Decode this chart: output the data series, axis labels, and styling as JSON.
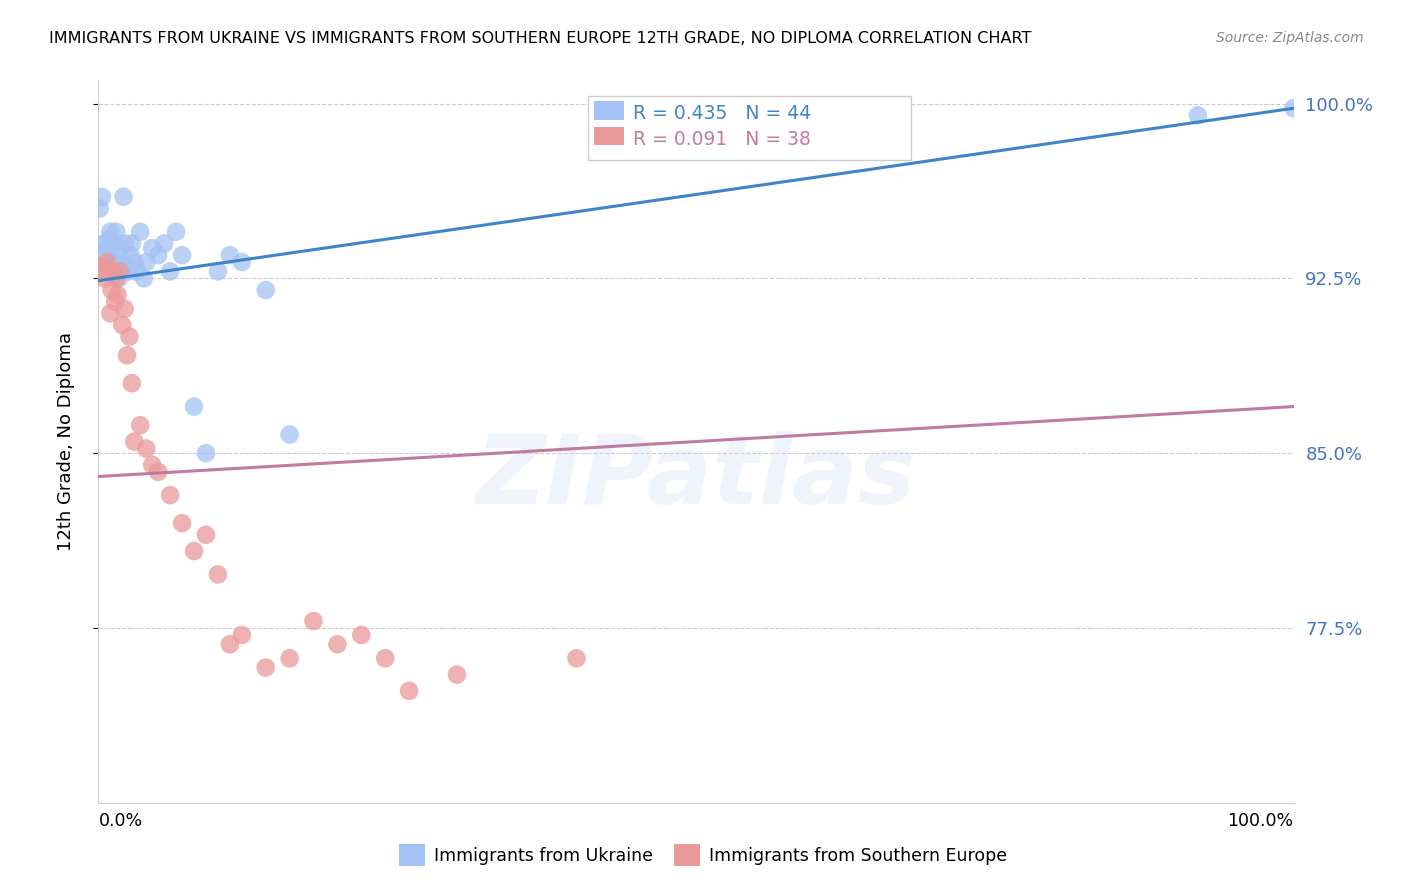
{
  "title": "IMMIGRANTS FROM UKRAINE VS IMMIGRANTS FROM SOUTHERN EUROPE 12TH GRADE, NO DIPLOMA CORRELATION CHART",
  "source": "Source: ZipAtlas.com",
  "ylabel": "12th Grade, No Diploma",
  "blue_color": "#a4c2f4",
  "pink_color": "#ea9999",
  "blue_line_color": "#3d85c8",
  "pink_line_color": "#c27ba0",
  "ytick_color": "#4472c4",
  "legend_label_blue": "Immigrants from Ukraine",
  "legend_label_pink": "Immigrants from Southern Europe",
  "blue_R": "0.435",
  "blue_N": "44",
  "pink_R": "0.091",
  "pink_N": "38",
  "blue_scatter_x": [
    0.001,
    0.003,
    0.005,
    0.006,
    0.007,
    0.008,
    0.009,
    0.01,
    0.01,
    0.011,
    0.012,
    0.013,
    0.014,
    0.015,
    0.016,
    0.017,
    0.018,
    0.02,
    0.021,
    0.022,
    0.024,
    0.025,
    0.027,
    0.028,
    0.03,
    0.032,
    0.035,
    0.038,
    0.04,
    0.045,
    0.05,
    0.055,
    0.06,
    0.065,
    0.07,
    0.08,
    0.09,
    0.1,
    0.11,
    0.12,
    0.14,
    0.16,
    0.92,
    1.0
  ],
  "blue_scatter_y": [
    0.955,
    0.96,
    0.94,
    0.935,
    0.938,
    0.93,
    0.942,
    0.945,
    0.938,
    0.932,
    0.928,
    0.93,
    0.94,
    0.945,
    0.932,
    0.925,
    0.935,
    0.93,
    0.96,
    0.94,
    0.93,
    0.928,
    0.935,
    0.94,
    0.932,
    0.928,
    0.945,
    0.925,
    0.932,
    0.938,
    0.935,
    0.94,
    0.928,
    0.945,
    0.935,
    0.87,
    0.85,
    0.928,
    0.935,
    0.932,
    0.92,
    0.858,
    0.995,
    0.998
  ],
  "pink_scatter_x": [
    0.001,
    0.003,
    0.005,
    0.007,
    0.009,
    0.01,
    0.011,
    0.012,
    0.014,
    0.015,
    0.016,
    0.018,
    0.02,
    0.022,
    0.024,
    0.026,
    0.028,
    0.03,
    0.035,
    0.04,
    0.045,
    0.05,
    0.06,
    0.07,
    0.08,
    0.09,
    0.1,
    0.11,
    0.12,
    0.14,
    0.16,
    0.18,
    0.2,
    0.22,
    0.24,
    0.26,
    0.3,
    0.4
  ],
  "pink_scatter_y": [
    0.93,
    0.928,
    0.925,
    0.932,
    0.928,
    0.91,
    0.92,
    0.928,
    0.915,
    0.925,
    0.918,
    0.928,
    0.905,
    0.912,
    0.892,
    0.9,
    0.88,
    0.855,
    0.862,
    0.852,
    0.845,
    0.842,
    0.832,
    0.82,
    0.808,
    0.815,
    0.798,
    0.768,
    0.772,
    0.758,
    0.762,
    0.778,
    0.768,
    0.772,
    0.762,
    0.748,
    0.755,
    0.762
  ],
  "blue_trendline_x": [
    0.0,
    1.0
  ],
  "blue_trendline_y": [
    0.924,
    0.998
  ],
  "pink_trendline_x": [
    0.0,
    1.0
  ],
  "pink_trendline_y": [
    0.84,
    0.87
  ],
  "xlim": [
    0.0,
    1.0
  ],
  "ylim": [
    0.7,
    1.01
  ],
  "ytick_vals": [
    0.775,
    0.85,
    0.925,
    1.0
  ],
  "ytick_labels": [
    "77.5%",
    "85.0%",
    "92.5%",
    "100.0%"
  ],
  "watermark": "ZIPatlas",
  "background_color": "#ffffff",
  "grid_color": "#cccccc"
}
